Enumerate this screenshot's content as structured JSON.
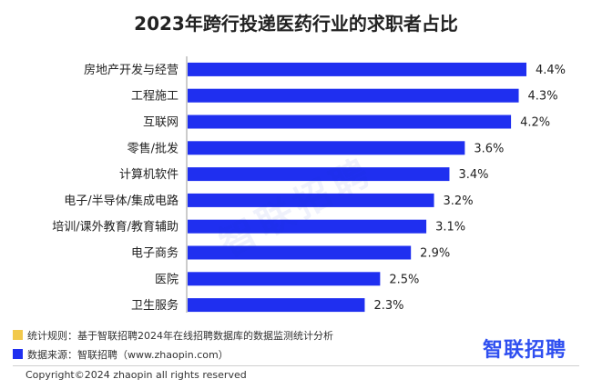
{
  "chart_data": {
    "type": "bar",
    "orientation": "horizontal",
    "title": "2023年跨行投递医药行业的求职者占比",
    "categories": [
      "房地产开发与经营",
      "工程施工",
      "互联网",
      "零售/批发",
      "计算机软件",
      "电子/半导体/集成电路",
      "培训/课外教育/教育辅助",
      "电子商务",
      "医院",
      "卫生服务"
    ],
    "values": [
      4.4,
      4.3,
      4.2,
      3.6,
      3.4,
      3.2,
      3.1,
      2.9,
      2.5,
      2.3
    ],
    "value_labels": [
      "4.4%",
      "4.3%",
      "4.2%",
      "3.6%",
      "3.4%",
      "3.2%",
      "3.1%",
      "2.9%",
      "2.5%",
      "2.3%"
    ],
    "xlim": [
      0,
      4.4
    ],
    "grid": false,
    "bar_color": "#1f2ff0"
  },
  "watermark": "智联招聘",
  "legend": {
    "rule_label": "统计规则：基于智联招聘2024年在线招聘数据库的数据监测统计分析",
    "rule_color": "#f2c94c",
    "source_label": "数据来源：智联招聘（www.zhaopin.com）",
    "source_color": "#1f2ff0"
  },
  "logo_text": "智联招聘",
  "copyright": "Copyright©2024 zhaopin all rights reserved"
}
